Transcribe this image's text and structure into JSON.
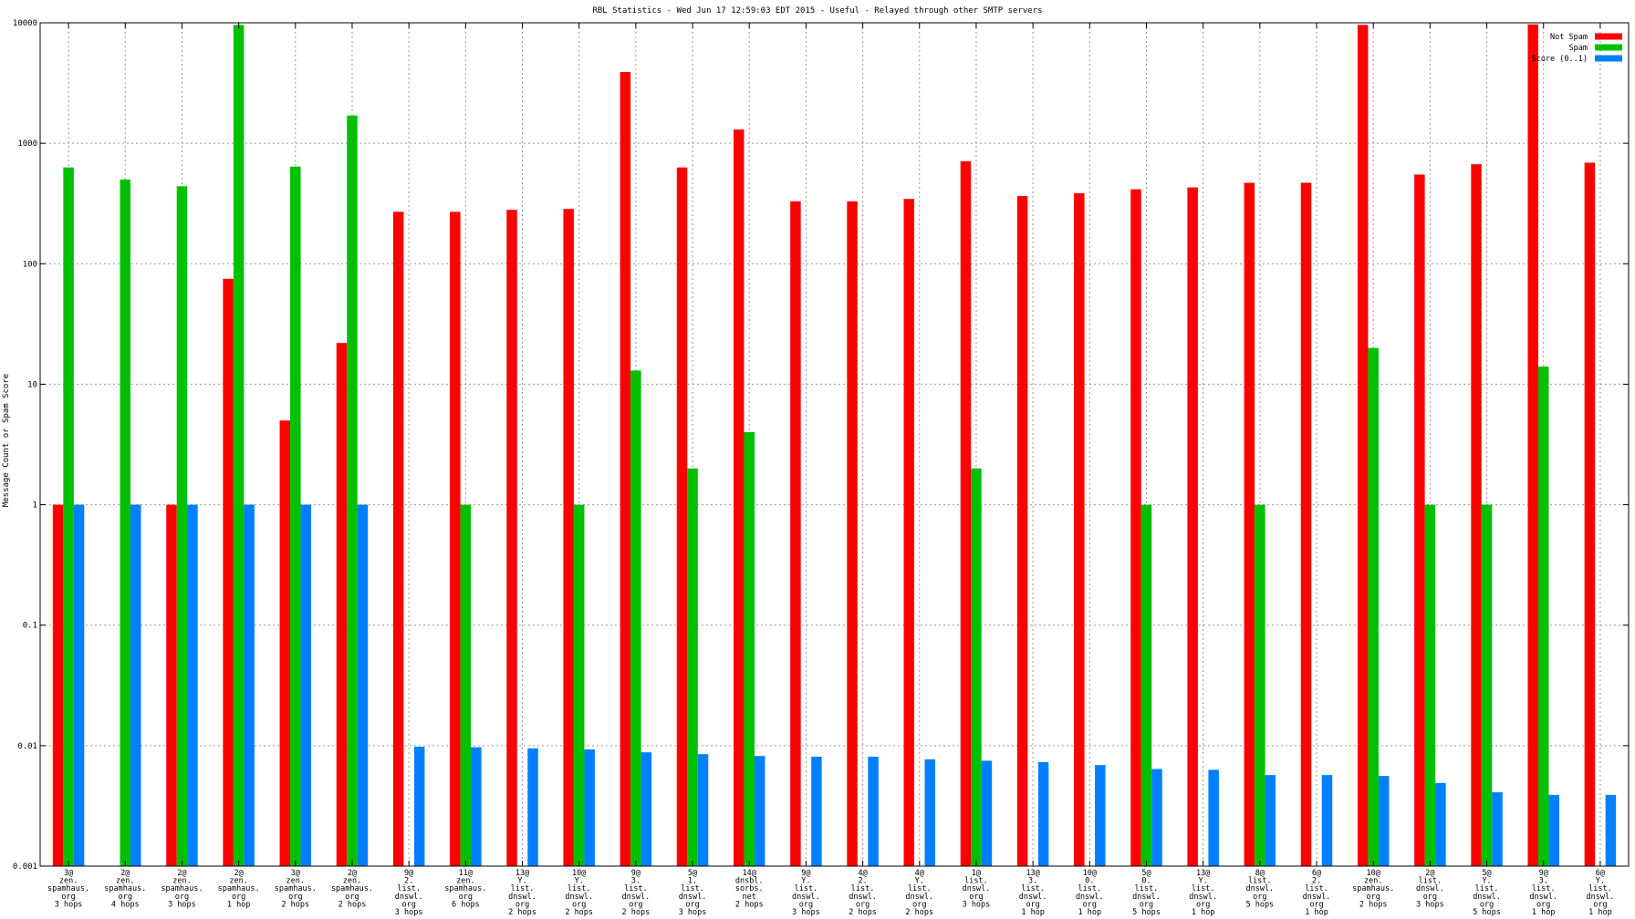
{
  "chart_data": {
    "type": "bar",
    "title": "RBL Statistics - Wed Jun 17 12:59:03 EDT 2015 - Useful - Relayed through other SMTP servers",
    "xlabel": "",
    "ylabel": "Message Count or Spam Score",
    "yscale": "log",
    "ylim": [
      0.001,
      10000
    ],
    "yticks": [
      "0.001",
      "0.01",
      "0.1",
      "1",
      "10",
      "100",
      "1000",
      "10000"
    ],
    "grid": true,
    "legend_position": "top-right",
    "categories": [
      [
        "3@",
        "zen.",
        "spamhaus.",
        "org",
        "3 hops"
      ],
      [
        "2@",
        "zen.",
        "spamhaus.",
        "org",
        "4 hops"
      ],
      [
        "2@",
        "zen.",
        "spamhaus.",
        "org",
        "3 hops"
      ],
      [
        "2@",
        "zen.",
        "spamhaus.",
        "org",
        "1 hop"
      ],
      [
        "3@",
        "zen.",
        "spamhaus.",
        "org",
        "2 hops"
      ],
      [
        "2@",
        "zen.",
        "spamhaus.",
        "org",
        "2 hops"
      ],
      [
        "9@",
        "2.",
        "list.",
        "dnswl.",
        "org",
        "3 hops"
      ],
      [
        "11@",
        "zen.",
        "spamhaus.",
        "org",
        "6 hops"
      ],
      [
        "13@",
        "Y.",
        "list.",
        "dnswl.",
        "org",
        "2 hops"
      ],
      [
        "10@",
        "Y.",
        "list.",
        "dnswl.",
        "org",
        "2 hops"
      ],
      [
        "9@",
        "3.",
        "list.",
        "dnswl.",
        "org",
        "2 hops"
      ],
      [
        "5@",
        "1.",
        "list.",
        "dnswl.",
        "org",
        "3 hops"
      ],
      [
        "14@",
        "dnsbl.",
        "sorbs.",
        "net",
        "2 hops"
      ],
      [
        "9@",
        "Y.",
        "list.",
        "dnswl.",
        "org",
        "3 hops"
      ],
      [
        "4@",
        "2.",
        "list.",
        "dnswl.",
        "org",
        "2 hops"
      ],
      [
        "4@",
        "Y.",
        "list.",
        "dnswl.",
        "org",
        "2 hops"
      ],
      [
        "1@",
        "list.",
        "dnswl.",
        "org",
        "3 hops"
      ],
      [
        "13@",
        "3.",
        "list.",
        "dnswl.",
        "org",
        "1 hop"
      ],
      [
        "10@",
        "0.",
        "list.",
        "dnswl.",
        "org",
        "1 hop"
      ],
      [
        "5@",
        "0.",
        "list.",
        "dnswl.",
        "org",
        "5 hops"
      ],
      [
        "13@",
        "Y.",
        "list.",
        "dnswl.",
        "org",
        "1 hop"
      ],
      [
        "8@",
        "list.",
        "dnswl.",
        "org",
        "5 hops"
      ],
      [
        "6@",
        "2.",
        "list.",
        "dnswl.",
        "org",
        "1 hop"
      ],
      [
        "10@",
        "zen.",
        "spamhaus.",
        "org",
        "2 hops"
      ],
      [
        "2@",
        "list.",
        "dnswl.",
        "org",
        "3 hops"
      ],
      [
        "5@",
        "Y.",
        "list.",
        "dnswl.",
        "org",
        "5 hops"
      ],
      [
        "9@",
        "3.",
        "list.",
        "dnswl.",
        "org",
        "1 hop"
      ],
      [
        "6@",
        "Y.",
        "list.",
        "dnswl.",
        "org",
        "1 hop"
      ]
    ],
    "series": [
      {
        "name": "Not Spam",
        "color": "#ff0000",
        "values": [
          1,
          null,
          1,
          75,
          5,
          22,
          270,
          270,
          280,
          285,
          3900,
          630,
          1300,
          330,
          330,
          345,
          710,
          365,
          385,
          415,
          430,
          470,
          470,
          9600,
          550,
          670,
          9700,
          690
        ]
      },
      {
        "name": "Spam",
        "color": "#00c000",
        "values": [
          630,
          500,
          440,
          9600,
          640,
          1700,
          null,
          1,
          null,
          1,
          13,
          2,
          4,
          null,
          null,
          null,
          2,
          null,
          null,
          1,
          null,
          1,
          null,
          20,
          1,
          1,
          14,
          null
        ]
      },
      {
        "name": "Score (0..1)",
        "color": "#0080ff",
        "values": [
          1,
          1,
          1,
          1,
          1,
          1,
          0.0098,
          0.0097,
          0.0095,
          0.0093,
          0.0088,
          0.0085,
          0.0082,
          0.0081,
          0.0081,
          0.0077,
          0.0075,
          0.0073,
          0.0069,
          0.0064,
          0.0063,
          0.0057,
          0.0057,
          0.0056,
          0.0049,
          0.0041,
          0.0039,
          0.0039
        ]
      }
    ]
  }
}
